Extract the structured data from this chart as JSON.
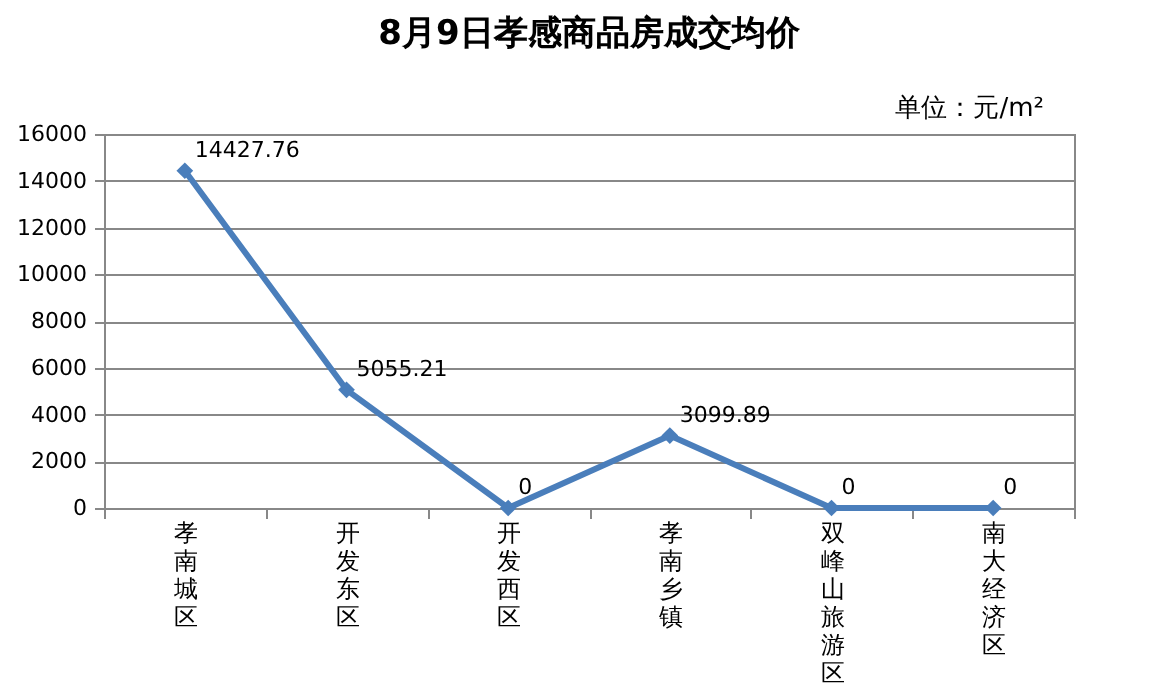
{
  "chart_data": {
    "type": "line",
    "title": "8月9日孝感商品房成交均价",
    "annotations": [
      "单位：元/m²"
    ],
    "categories": [
      "孝南城区",
      "开发东区",
      "开发西区",
      "孝南乡镇",
      "双峰山旅游区",
      "南大经济区"
    ],
    "series": [
      {
        "color": "#4a7ebb",
        "values": [
          14427.76,
          5055.21,
          0,
          3099.89,
          0,
          0
        ]
      }
    ],
    "ylim": [
      0,
      16000
    ],
    "yticks": [
      0,
      2000,
      4000,
      6000,
      8000,
      10000,
      12000,
      14000,
      16000
    ],
    "grid": "y",
    "data_labels": true,
    "marker": "diamond",
    "line_style": "solid"
  }
}
